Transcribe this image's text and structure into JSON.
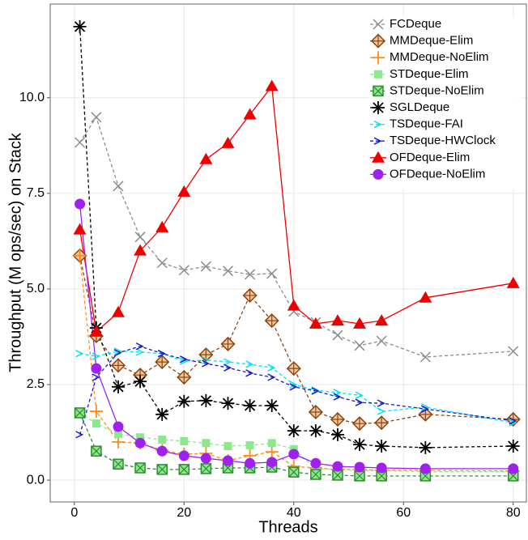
{
  "chart_data": {
    "type": "line",
    "x_label": "Threads",
    "y_label": "Throughput (M ops/sec) on Stack",
    "x": [
      1,
      4,
      8,
      12,
      16,
      20,
      24,
      28,
      32,
      36,
      40,
      44,
      48,
      52,
      56,
      64,
      80
    ],
    "xlim": [
      -4.4,
      82.4
    ],
    "ylim": [
      -0.57,
      12.45
    ],
    "xticks": [
      0,
      20,
      40,
      60,
      80
    ],
    "yticks": [
      {
        "value": 0,
        "label": "0.0"
      },
      2.5,
      {
        "value": 5,
        "label": "5.0"
      },
      7.5,
      {
        "value": 10,
        "label": "10.0"
      }
    ],
    "grid": true,
    "legend": "top-right",
    "series": [
      {
        "name": "FCDeque",
        "color": "#8c8c8c",
        "marker": "x",
        "dashed": true,
        "values": [
          8.83,
          9.49,
          7.69,
          6.36,
          5.68,
          5.49,
          5.59,
          5.47,
          5.38,
          5.4,
          4.41,
          4.13,
          3.79,
          3.52,
          3.64,
          3.22,
          3.37
        ]
      },
      {
        "name": "MMDeque-Elim",
        "color": "#8b4513",
        "marker": "diamond",
        "dashed": true,
        "values": [
          5.87,
          3.77,
          3.0,
          2.75,
          3.09,
          2.69,
          3.28,
          3.56,
          4.83,
          4.17,
          2.92,
          1.78,
          1.59,
          1.48,
          1.5,
          1.72,
          1.59
        ]
      },
      {
        "name": "MMDeque-NoElim",
        "color": "#ff8c1a",
        "marker": "plus",
        "dashed": true,
        "values": [
          5.87,
          1.8,
          1.0,
          0.97,
          0.78,
          0.68,
          0.7,
          0.51,
          0.64,
          0.74,
          0.36,
          0.32,
          0.28,
          0.28,
          0.26,
          0.26,
          0.24
        ]
      },
      {
        "name": "STDeque-Elim",
        "color": "#8de88d",
        "marker": "square",
        "dashed": true,
        "values": [
          1.76,
          1.48,
          1.21,
          1.12,
          1.06,
          1.02,
          0.97,
          0.89,
          0.91,
          0.97,
          0.81,
          0.3,
          0.28,
          0.25,
          0.25,
          0.22,
          0.22
        ]
      },
      {
        "name": "STDeque-NoElim",
        "color": "#2e8b2e",
        "marker": "square-x",
        "dashed": true,
        "values": [
          1.76,
          0.76,
          0.42,
          0.32,
          0.28,
          0.28,
          0.3,
          0.32,
          0.32,
          0.34,
          0.21,
          0.15,
          0.13,
          0.11,
          0.11,
          0.11,
          0.11
        ]
      },
      {
        "name": "SGLDeque",
        "color": "#000000",
        "marker": "asterisk",
        "dashed": true,
        "values": [
          11.86,
          3.98,
          2.44,
          2.58,
          1.72,
          2.06,
          2.08,
          2.01,
          1.95,
          1.95,
          1.29,
          1.29,
          1.19,
          0.93,
          0.89,
          0.85,
          0.89
        ]
      },
      {
        "name": "TSDeque-FAI",
        "color": "#00e5ee",
        "marker": "arrow",
        "dashed": true,
        "values": [
          3.31,
          3.24,
          3.37,
          3.35,
          3.31,
          3.11,
          3.14,
          3.09,
          3.03,
          2.94,
          2.5,
          2.35,
          2.29,
          2.22,
          1.8,
          1.91,
          1.5
        ]
      },
      {
        "name": "TSDeque-HWClock",
        "color": "#1a1acd",
        "marker": "arrow",
        "dashed": true,
        "values": [
          1.19,
          2.69,
          3.33,
          3.5,
          3.31,
          3.16,
          3.05,
          2.94,
          2.8,
          2.69,
          2.44,
          2.33,
          2.18,
          2.03,
          2.01,
          1.86,
          1.55
        ]
      },
      {
        "name": "OFDeque-Elim",
        "color": "#ee0000",
        "marker": "triangle",
        "dashed": false,
        "values": [
          6.55,
          3.88,
          4.39,
          6.0,
          6.61,
          7.54,
          8.39,
          8.81,
          9.56,
          10.3,
          4.56,
          4.09,
          4.17,
          4.09,
          4.17,
          4.77,
          5.15
        ]
      },
      {
        "name": "OFDeque-NoElim",
        "color": "#a020f0",
        "marker": "circle",
        "dashed": false,
        "values": [
          7.22,
          2.92,
          1.4,
          0.97,
          0.76,
          0.64,
          0.57,
          0.51,
          0.44,
          0.47,
          0.68,
          0.44,
          0.36,
          0.34,
          0.32,
          0.3,
          0.3
        ]
      }
    ]
  }
}
